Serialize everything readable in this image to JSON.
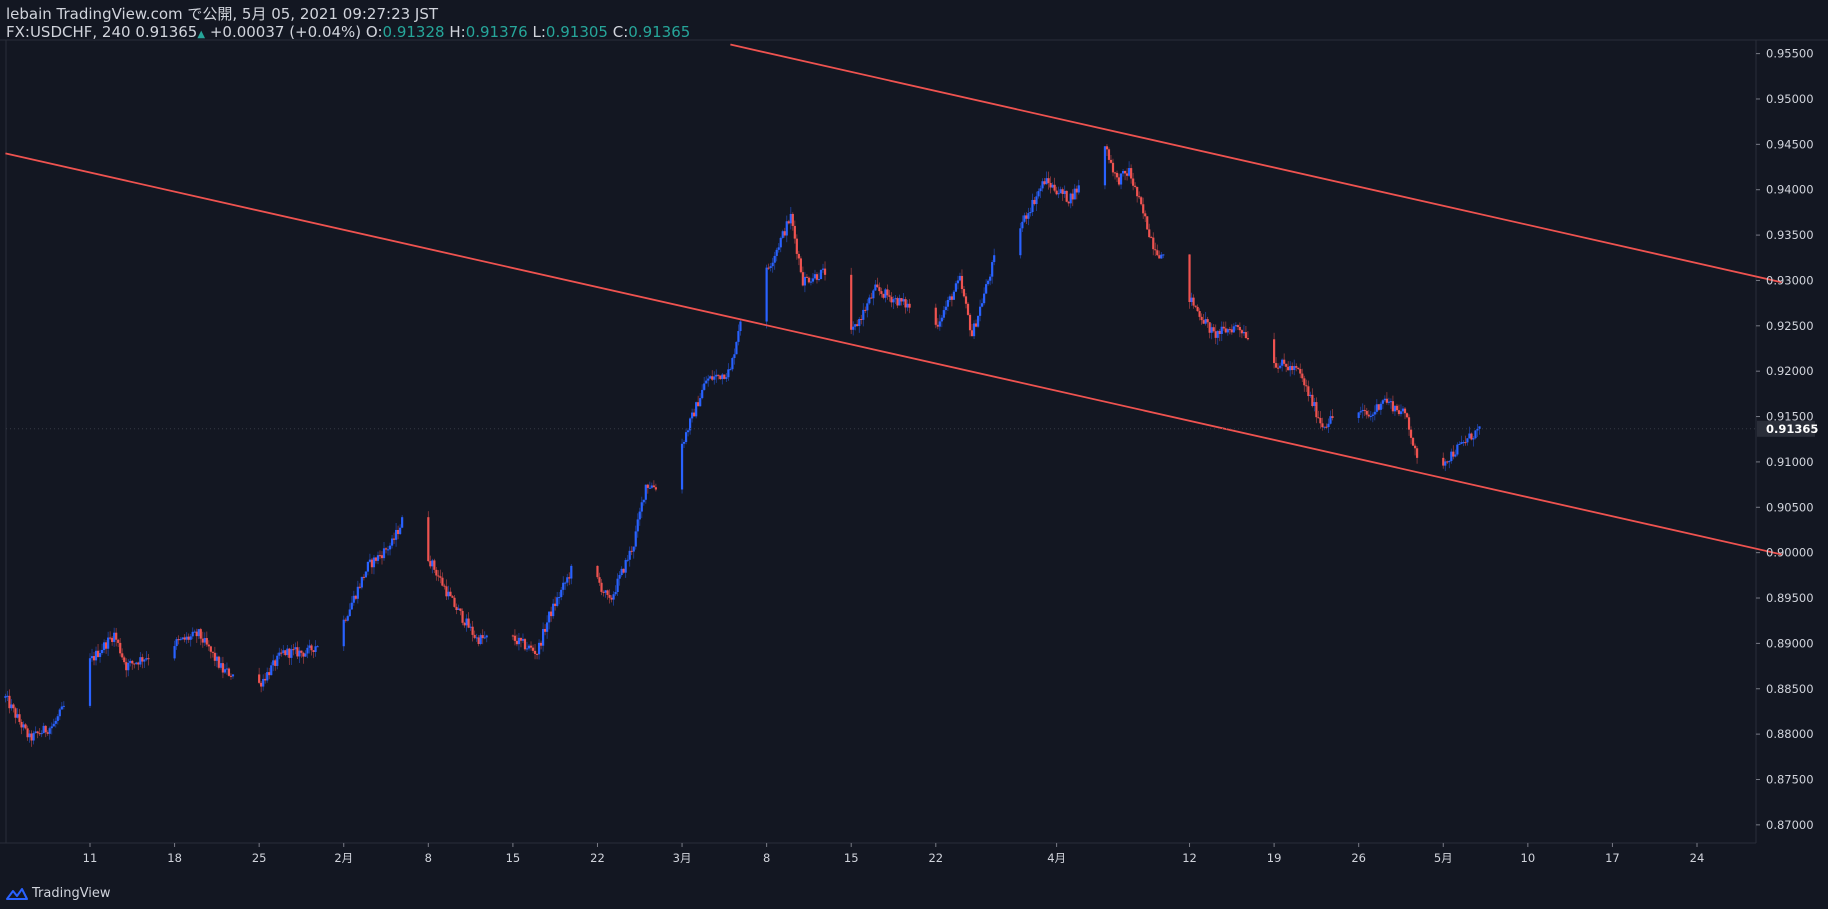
{
  "header": {
    "publish_line": "lebain TradingView.com で公開, 5月 05, 2021 09:27:23 JST",
    "symbol": "FX:USDCHF, 240 0.91365",
    "change": "+0.00037 (+0.04%)",
    "o_label": "O:",
    "o_value": "0.91328",
    "h_label": "H:",
    "h_value": "0.91376",
    "l_label": "L:",
    "l_value": "0.91305",
    "c_label": "C:",
    "c_value": "0.91365"
  },
  "footer": {
    "brand": "TradingView",
    "icon": "tradingview-logo-icon"
  },
  "colors": {
    "background": "#131722",
    "up": "#2962ff",
    "down": "#ef5350",
    "channel": "#ef5350",
    "text": "#d1d4dc",
    "green": "#26a69a"
  },
  "chart_data": {
    "type": "candlestick",
    "symbol": "FX:USDCHF",
    "interval": "240",
    "y_ticks": [
      "0.87000",
      "0.87500",
      "0.88000",
      "0.88500",
      "0.89000",
      "0.89500",
      "0.90000",
      "0.90500",
      "0.91000",
      "0.91500",
      "0.92000",
      "0.92500",
      "0.93000",
      "0.93500",
      "0.94000",
      "0.94500",
      "0.95000",
      "0.95500"
    ],
    "ylim": [
      0.868,
      0.9565
    ],
    "x_ticks": [
      {
        "label": "11",
        "date": "2021-01-11"
      },
      {
        "label": "18",
        "date": "2021-01-18"
      },
      {
        "label": "25",
        "date": "2021-01-25"
      },
      {
        "label": "2月",
        "date": "2021-02-01"
      },
      {
        "label": "8",
        "date": "2021-02-08"
      },
      {
        "label": "15",
        "date": "2021-02-15"
      },
      {
        "label": "22",
        "date": "2021-02-22"
      },
      {
        "label": "3月",
        "date": "2021-03-01"
      },
      {
        "label": "8",
        "date": "2021-03-08"
      },
      {
        "label": "15",
        "date": "2021-03-15"
      },
      {
        "label": "22",
        "date": "2021-03-22"
      },
      {
        "label": "4月",
        "date": "2021-04-01"
      },
      {
        "label": "12",
        "date": "2021-04-12"
      },
      {
        "label": "19",
        "date": "2021-04-19"
      },
      {
        "label": "26",
        "date": "2021-04-26"
      },
      {
        "label": "5月",
        "date": "2021-05-03"
      },
      {
        "label": "10",
        "date": "2021-05-10"
      },
      {
        "label": "17",
        "date": "2021-05-17"
      },
      {
        "label": "24",
        "date": "2021-05-24"
      }
    ],
    "last_price": "0.91365",
    "path_points": [
      {
        "date": "2021-01-04",
        "price": 0.884
      },
      {
        "date": "2021-01-06",
        "price": 0.8795
      },
      {
        "date": "2021-01-08",
        "price": 0.881
      },
      {
        "date": "2021-01-11",
        "price": 0.888
      },
      {
        "date": "2021-01-13",
        "price": 0.891
      },
      {
        "date": "2021-01-14",
        "price": 0.8875
      },
      {
        "date": "2021-01-18",
        "price": 0.89
      },
      {
        "date": "2021-01-20",
        "price": 0.891
      },
      {
        "date": "2021-01-22",
        "price": 0.887
      },
      {
        "date": "2021-01-25",
        "price": 0.8855
      },
      {
        "date": "2021-01-27",
        "price": 0.889
      },
      {
        "date": "2021-01-29",
        "price": 0.889
      },
      {
        "date": "2021-02-01",
        "price": 0.8925
      },
      {
        "date": "2021-02-03",
        "price": 0.8985
      },
      {
        "date": "2021-02-05",
        "price": 0.901
      },
      {
        "date": "2021-02-06",
        "price": 0.904
      },
      {
        "date": "2021-02-08",
        "price": 0.8995
      },
      {
        "date": "2021-02-10",
        "price": 0.8945
      },
      {
        "date": "2021-02-12",
        "price": 0.8905
      },
      {
        "date": "2021-02-15",
        "price": 0.8905
      },
      {
        "date": "2021-02-17",
        "price": 0.889
      },
      {
        "date": "2021-02-18",
        "price": 0.893
      },
      {
        "date": "2021-02-20",
        "price": 0.8985
      },
      {
        "date": "2021-02-22",
        "price": 0.897
      },
      {
        "date": "2021-02-23",
        "price": 0.8945
      },
      {
        "date": "2021-02-25",
        "price": 0.901
      },
      {
        "date": "2021-02-26",
        "price": 0.9075
      },
      {
        "date": "2021-02-28",
        "price": 0.907
      },
      {
        "date": "2021-03-01",
        "price": 0.912
      },
      {
        "date": "2021-03-03",
        "price": 0.919
      },
      {
        "date": "2021-03-05",
        "price": 0.92
      },
      {
        "date": "2021-03-06",
        "price": 0.927
      },
      {
        "date": "2021-03-08",
        "price": 0.931
      },
      {
        "date": "2021-03-10",
        "price": 0.937
      },
      {
        "date": "2021-03-11",
        "price": 0.93
      },
      {
        "date": "2021-03-13",
        "price": 0.931
      },
      {
        "date": "2021-03-15",
        "price": 0.924
      },
      {
        "date": "2021-03-17",
        "price": 0.929
      },
      {
        "date": "2021-03-20",
        "price": 0.927
      },
      {
        "date": "2021-03-22",
        "price": 0.925
      },
      {
        "date": "2021-03-24",
        "price": 0.93
      },
      {
        "date": "2021-03-25",
        "price": 0.924
      },
      {
        "date": "2021-03-27",
        "price": 0.933
      },
      {
        "date": "2021-03-29",
        "price": 0.936
      },
      {
        "date": "2021-03-31",
        "price": 0.941
      },
      {
        "date": "2021-04-02",
        "price": 0.939
      },
      {
        "date": "2021-04-04",
        "price": 0.942
      },
      {
        "date": "2021-04-05",
        "price": 0.945
      },
      {
        "date": "2021-04-06",
        "price": 0.941
      },
      {
        "date": "2021-04-07",
        "price": 0.942
      },
      {
        "date": "2021-04-09",
        "price": 0.934
      },
      {
        "date": "2021-04-12",
        "price": 0.928
      },
      {
        "date": "2021-04-14",
        "price": 0.924
      },
      {
        "date": "2021-04-16",
        "price": 0.925
      },
      {
        "date": "2021-04-19",
        "price": 0.921
      },
      {
        "date": "2021-04-21",
        "price": 0.92
      },
      {
        "date": "2021-04-23",
        "price": 0.914
      },
      {
        "date": "2021-04-25",
        "price": 0.916
      },
      {
        "date": "2021-04-27",
        "price": 0.915
      },
      {
        "date": "2021-04-28",
        "price": 0.917
      },
      {
        "date": "2021-04-30",
        "price": 0.915
      },
      {
        "date": "2021-05-01",
        "price": 0.909
      },
      {
        "date": "2021-05-03",
        "price": 0.91
      },
      {
        "date": "2021-05-05",
        "price": 0.9125
      },
      {
        "date": "2021-05-06",
        "price": 0.9136
      }
    ],
    "channel_lines": [
      {
        "name": "upper",
        "points": [
          {
            "date": "2021-03-05",
            "price": 0.956
          },
          {
            "date": "2021-05-31",
            "price": 0.9298
          }
        ]
      },
      {
        "name": "lower",
        "points": [
          {
            "date": "2021-01-04",
            "price": 0.944
          },
          {
            "date": "2021-05-31",
            "price": 0.8998
          }
        ]
      }
    ]
  }
}
